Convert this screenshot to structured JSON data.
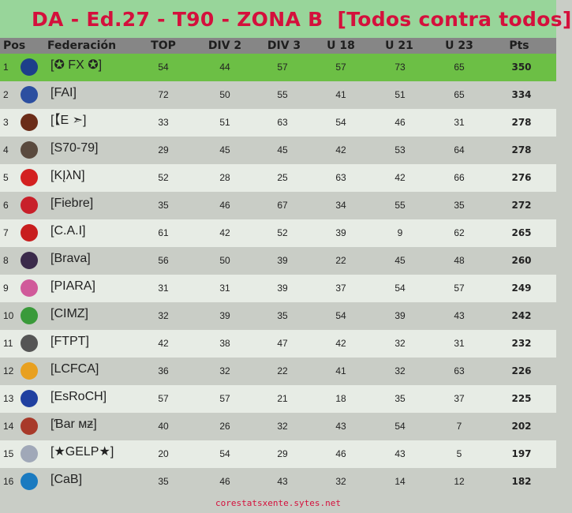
{
  "title": "DA - Ed.27 - T90 - ZONA B  [Todos contra todos]",
  "columns": [
    "Pos",
    "Federación",
    "TOP",
    "DIV 2",
    "DIV 3",
    "U 18",
    "U 21",
    "U 23",
    "Pts"
  ],
  "rows": [
    {
      "pos": "1",
      "fed": "[✪ FX ✪]",
      "top": "54",
      "div2": "44",
      "div3": "57",
      "u18": "57",
      "u21": "73",
      "u23": "65",
      "pts": "350",
      "logo": "#1d3f8a"
    },
    {
      "pos": "2",
      "fed": "[FAI]",
      "top": "72",
      "div2": "50",
      "div3": "55",
      "u18": "41",
      "u21": "51",
      "u23": "65",
      "pts": "334",
      "logo": "#2c4fa0"
    },
    {
      "pos": "3",
      "fed": "[【E ➣]",
      "top": "33",
      "div2": "51",
      "div3": "63",
      "u18": "54",
      "u21": "46",
      "u23": "31",
      "pts": "278",
      "logo": "#6b2c18"
    },
    {
      "pos": "4",
      "fed": "[S70-79]",
      "top": "29",
      "div2": "45",
      "div3": "45",
      "u18": "42",
      "u21": "53",
      "u23": "64",
      "pts": "278",
      "logo": "#5a4a3e"
    },
    {
      "pos": "5",
      "fed": "[KĮλN]",
      "top": "52",
      "div2": "28",
      "div3": "25",
      "u18": "63",
      "u21": "42",
      "u23": "66",
      "pts": "276",
      "logo": "#d32020"
    },
    {
      "pos": "6",
      "fed": "[Fiebre]",
      "top": "35",
      "div2": "46",
      "div3": "67",
      "u18": "34",
      "u21": "55",
      "u23": "35",
      "pts": "272",
      "logo": "#c8202a"
    },
    {
      "pos": "7",
      "fed": "[C.A.I]",
      "top": "61",
      "div2": "42",
      "div3": "52",
      "u18": "39",
      "u21": "9",
      "u23": "62",
      "pts": "265",
      "logo": "#c81e1e"
    },
    {
      "pos": "8",
      "fed": "[Brava]",
      "top": "56",
      "div2": "50",
      "div3": "39",
      "u18": "22",
      "u21": "45",
      "u23": "48",
      "pts": "260",
      "logo": "#3a2a4a"
    },
    {
      "pos": "9",
      "fed": "[PIARA]",
      "top": "31",
      "div2": "31",
      "div3": "39",
      "u18": "37",
      "u21": "54",
      "u23": "57",
      "pts": "249",
      "logo": "#d05a9a"
    },
    {
      "pos": "10",
      "fed": "[CIMZ]",
      "top": "32",
      "div2": "39",
      "div3": "35",
      "u18": "54",
      "u21": "39",
      "u23": "43",
      "pts": "242",
      "logo": "#3a9a3a"
    },
    {
      "pos": "11",
      "fed": "[FTPT]",
      "top": "42",
      "div2": "38",
      "div3": "47",
      "u18": "42",
      "u21": "32",
      "u23": "31",
      "pts": "232",
      "logo": "#555555"
    },
    {
      "pos": "12",
      "fed": "[LCFCA]",
      "top": "36",
      "div2": "32",
      "div3": "22",
      "u18": "41",
      "u21": "32",
      "u23": "63",
      "pts": "226",
      "logo": "#e8a020"
    },
    {
      "pos": "13",
      "fed": "[EsRoCH]",
      "top": "57",
      "div2": "57",
      "div3": "21",
      "u18": "18",
      "u21": "35",
      "u23": "37",
      "pts": "225",
      "logo": "#2040a0"
    },
    {
      "pos": "14",
      "fed": "[Ɓar ᴍƶ]",
      "top": "40",
      "div2": "26",
      "div3": "32",
      "u18": "43",
      "u21": "54",
      "u23": "7",
      "pts": "202",
      "logo": "#a83a2a"
    },
    {
      "pos": "15",
      "fed": "[★GELP★]",
      "top": "20",
      "div2": "54",
      "div3": "29",
      "u18": "46",
      "u21": "43",
      "u23": "5",
      "pts": "197",
      "logo": "#a0a8b8"
    },
    {
      "pos": "16",
      "fed": "[CaB]",
      "top": "35",
      "div2": "46",
      "div3": "43",
      "u18": "32",
      "u21": "14",
      "u23": "12",
      "pts": "182",
      "logo": "#1a7ac0"
    }
  ],
  "footer": "corestatsxente.sytes.net",
  "colors": {
    "title": "#d4103c",
    "header_bg": "#868686",
    "leader_row": "#6cbf45",
    "title_bg": "#98d59a"
  }
}
